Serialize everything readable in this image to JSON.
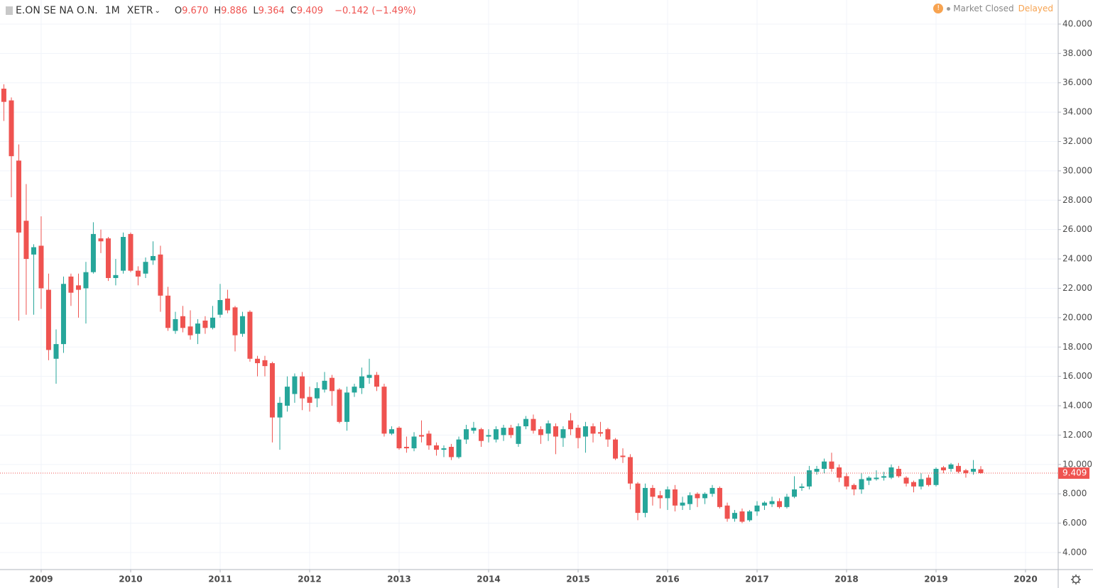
{
  "header": {
    "symbol": "E.ON SE NA O.N.",
    "interval": "1M",
    "exchange": "XETR",
    "ohlc": [
      {
        "key": "O",
        "value": "9.670"
      },
      {
        "key": "H",
        "value": "9.886"
      },
      {
        "key": "L",
        "value": "9.364"
      },
      {
        "key": "C",
        "value": "9.409"
      }
    ],
    "change": "−0.142 (−1.49%)",
    "status": "Market Closed",
    "feed": "Delayed"
  },
  "chart_data": {
    "type": "candlestick",
    "up_color": "#26a69a",
    "down_color": "#ef5350",
    "grid": true,
    "x": [
      2008.583,
      2008.667,
      2008.75,
      2008.833,
      2008.917,
      2009,
      2009.083,
      2009.167,
      2009.25,
      2009.333,
      2009.417,
      2009.5,
      2009.583,
      2009.667,
      2009.75,
      2009.833,
      2009.917,
      2010,
      2010.083,
      2010.167,
      2010.25,
      2010.333,
      2010.417,
      2010.5,
      2010.583,
      2010.667,
      2010.75,
      2010.833,
      2010.917,
      2011,
      2011.083,
      2011.167,
      2011.25,
      2011.333,
      2011.417,
      2011.5,
      2011.583,
      2011.667,
      2011.75,
      2011.833,
      2011.917,
      2012,
      2012.083,
      2012.167,
      2012.25,
      2012.333,
      2012.417,
      2012.5,
      2012.583,
      2012.667,
      2012.75,
      2012.833,
      2012.917,
      2013,
      2013.083,
      2013.167,
      2013.25,
      2013.333,
      2013.417,
      2013.5,
      2013.583,
      2013.667,
      2013.75,
      2013.833,
      2013.917,
      2014,
      2014.083,
      2014.167,
      2014.25,
      2014.333,
      2014.417,
      2014.5,
      2014.583,
      2014.667,
      2014.75,
      2014.833,
      2014.917,
      2015,
      2015.083,
      2015.167,
      2015.25,
      2015.333,
      2015.417,
      2015.5,
      2015.583,
      2015.667,
      2015.75,
      2015.833,
      2015.917,
      2016,
      2016.083,
      2016.167,
      2016.25,
      2016.333,
      2016.417,
      2016.5,
      2016.583,
      2016.667,
      2016.75,
      2016.833,
      2016.917,
      2017,
      2017.083,
      2017.167,
      2017.25,
      2017.333,
      2017.417,
      2017.5,
      2017.583,
      2017.667,
      2017.75,
      2017.833,
      2017.917,
      2018,
      2018.083,
      2018.167,
      2018.25,
      2018.333,
      2018.417,
      2018.5,
      2018.583,
      2018.667,
      2018.75,
      2018.833,
      2018.917,
      2019,
      2019.083,
      2019.167,
      2019.25,
      2019.333,
      2019.417,
      2019.5
    ],
    "open": [
      35.6,
      34.8,
      30.7,
      26.6,
      24.3,
      24.9,
      21.9,
      17.2,
      18.2,
      22.8,
      22.2,
      22.0,
      23.1,
      25.4,
      25.4,
      22.7,
      23.2,
      25.7,
      23.2,
      23.0,
      23.9,
      24.3,
      21.5,
      19.1,
      20.1,
      19.4,
      18.9,
      19.8,
      19.3,
      20.2,
      21.3,
      20.7,
      18.9,
      20.4,
      17.2,
      17.1,
      16.9,
      13.2,
      14.0,
      14.8,
      16.0,
      14.6,
      14.5,
      15.1,
      15.9,
      15.1,
      12.9,
      14.9,
      15.2,
      15.9,
      16.1,
      15.3,
      12.1,
      12.5,
      11.2,
      11.1,
      12.0,
      12.1,
      11.3,
      11.0,
      11.2,
      10.5,
      11.7,
      12.3,
      12.4,
      11.9,
      11.7,
      12.0,
      12.5,
      11.4,
      12.6,
      13.1,
      12.4,
      12.1,
      12.6,
      11.8,
      13.0,
      12.5,
      11.9,
      12.6,
      12.2,
      12.4,
      11.7,
      10.6,
      10.5,
      8.7,
      6.7,
      8.4,
      7.9,
      7.7,
      8.3,
      7.2,
      7.3,
      8.0,
      7.7,
      8.0,
      8.4,
      7.2,
      6.3,
      6.8,
      6.2,
      6.8,
      7.2,
      7.3,
      7.5,
      7.1,
      7.8,
      8.4,
      8.5,
      9.5,
      9.7,
      10.2,
      9.8,
      9.2,
      8.6,
      8.3,
      8.9,
      9.0,
      9.1,
      9.1,
      9.7,
      9.1,
      8.8,
      8.5,
      9.1,
      8.6,
      9.8,
      9.7,
      9.9,
      9.6,
      9.5,
      9.67
    ],
    "high": [
      35.9,
      35.0,
      31.8,
      29.1,
      25.0,
      26.9,
      23.0,
      19.2,
      22.8,
      23.0,
      23.0,
      23.8,
      26.5,
      26.0,
      25.5,
      24.0,
      25.8,
      25.8,
      23.5,
      24.1,
      25.2,
      24.9,
      22.1,
      20.4,
      20.8,
      20.5,
      19.9,
      20.1,
      20.8,
      22.3,
      21.9,
      20.8,
      20.4,
      20.5,
      17.4,
      17.4,
      17.0,
      14.6,
      16.0,
      16.2,
      16.3,
      15.3,
      15.6,
      16.3,
      16.1,
      15.2,
      15.3,
      15.5,
      16.6,
      17.2,
      16.3,
      15.5,
      12.6,
      12.6,
      11.9,
      12.2,
      13.0,
      12.3,
      11.5,
      11.3,
      11.4,
      11.9,
      12.7,
      12.9,
      12.5,
      12.4,
      12.6,
      12.7,
      12.7,
      12.8,
      13.3,
      13.4,
      12.6,
      13.0,
      12.8,
      12.6,
      13.5,
      12.7,
      12.9,
      12.8,
      12.9,
      12.5,
      11.8,
      11.1,
      10.7,
      8.8,
      8.7,
      8.6,
      8.2,
      8.5,
      8.6,
      7.8,
      8.1,
      8.1,
      8.1,
      8.6,
      8.5,
      7.4,
      6.9,
      7.0,
      6.9,
      7.5,
      7.5,
      7.8,
      7.7,
      8.0,
      9.2,
      8.7,
      9.9,
      9.9,
      10.4,
      10.8,
      10.0,
      9.4,
      8.7,
      9.4,
      9.2,
      9.6,
      9.5,
      10.0,
      9.9,
      9.2,
      8.9,
      9.4,
      9.3,
      9.8,
      9.9,
      10.1,
      10.1,
      9.7,
      10.3,
      9.886
    ],
    "low": [
      33.4,
      28.2,
      19.8,
      20.2,
      20.2,
      20.6,
      17.1,
      15.5,
      17.6,
      20.8,
      20.0,
      19.6,
      23.0,
      24.4,
      22.5,
      22.2,
      23.0,
      23.1,
      22.2,
      22.7,
      23.6,
      20.4,
      19.1,
      18.9,
      19.0,
      18.5,
      18.2,
      18.9,
      19.2,
      20.0,
      20.3,
      17.7,
      18.7,
      17.0,
      16.0,
      16.0,
      11.5,
      11.0,
      13.6,
      14.2,
      13.7,
      13.6,
      13.9,
      14.9,
      14.0,
      12.8,
      12.3,
      14.6,
      14.8,
      15.5,
      15.0,
      11.9,
      12.0,
      11.0,
      10.8,
      10.9,
      11.5,
      11.0,
      10.6,
      10.5,
      10.3,
      10.4,
      11.4,
      12.1,
      11.2,
      11.5,
      11.5,
      11.6,
      11.8,
      11.2,
      12.4,
      12.1,
      11.4,
      11.6,
      10.7,
      11.2,
      12.0,
      11.1,
      10.8,
      11.5,
      11.9,
      11.2,
      10.3,
      10.1,
      8.3,
      6.2,
      6.4,
      7.2,
      7.0,
      6.9,
      6.8,
      6.9,
      6.9,
      7.1,
      7.3,
      7.8,
      7.0,
      6.1,
      6.1,
      6.0,
      6.1,
      6.5,
      6.9,
      7.1,
      7.0,
      7.0,
      7.7,
      8.2,
      8.3,
      9.3,
      9.4,
      9.5,
      8.8,
      8.3,
      7.9,
      8.0,
      8.6,
      8.9,
      8.9,
      9.0,
      9.1,
      8.5,
      8.1,
      8.3,
      8.5,
      8.5,
      9.4,
      9.5,
      9.4,
      9.1,
      9.3,
      9.364
    ],
    "close": [
      34.7,
      31.0,
      25.8,
      24.0,
      24.8,
      22.0,
      17.8,
      18.2,
      22.3,
      21.7,
      21.9,
      23.1,
      25.7,
      25.2,
      22.7,
      22.9,
      25.5,
      23.2,
      22.8,
      23.8,
      24.2,
      21.5,
      19.3,
      19.9,
      19.3,
      18.8,
      19.6,
      19.3,
      20.0,
      21.2,
      20.5,
      18.8,
      20.1,
      17.2,
      16.9,
      16.7,
      13.2,
      14.2,
      15.3,
      16.0,
      14.5,
      14.2,
      15.2,
      15.7,
      15.0,
      12.9,
      14.9,
      15.3,
      16.0,
      16.1,
      15.3,
      12.1,
      12.4,
      11.1,
      11.1,
      11.9,
      11.9,
      11.3,
      11.0,
      11.1,
      10.5,
      11.7,
      12.4,
      12.5,
      11.6,
      12.0,
      12.4,
      12.5,
      12.0,
      12.6,
      13.1,
      12.3,
      12.0,
      12.8,
      11.9,
      12.4,
      12.4,
      11.8,
      12.6,
      12.1,
      12.1,
      11.7,
      10.4,
      10.5,
      8.7,
      6.7,
      8.4,
      7.8,
      7.7,
      8.3,
      7.2,
      7.4,
      7.9,
      7.7,
      8.0,
      8.4,
      7.1,
      6.3,
      6.7,
      6.1,
      6.8,
      7.2,
      7.4,
      7.5,
      7.1,
      7.8,
      8.3,
      8.5,
      9.6,
      9.7,
      10.2,
      9.7,
      9.1,
      8.5,
      8.3,
      9.0,
      9.1,
      9.1,
      9.2,
      9.8,
      9.2,
      8.7,
      8.5,
      9.0,
      8.6,
      9.7,
      9.6,
      10.0,
      9.5,
      9.4,
      9.7,
      9.409
    ],
    "last_price": 9.409,
    "xlim": [
      2008.54,
      2020.365
    ],
    "xticks": [
      2009,
      2010,
      2011,
      2012,
      2013,
      2014,
      2015,
      2016,
      2017,
      2018,
      2019,
      2020
    ],
    "ylim": [
      2.84,
      41.64
    ],
    "yticks": [
      {
        "value": 4,
        "label": "4.000"
      },
      {
        "value": 6,
        "label": "6.000"
      },
      {
        "value": 8,
        "label": "8.000"
      },
      {
        "value": 10,
        "label": "10.000"
      },
      {
        "value": 12,
        "label": "12.000"
      },
      {
        "value": 14,
        "label": "14.000"
      },
      {
        "value": 16,
        "label": "16.000"
      },
      {
        "value": 18,
        "label": "18.000"
      },
      {
        "value": 20,
        "label": "20.000"
      },
      {
        "value": 22,
        "label": "22.000"
      },
      {
        "value": 24,
        "label": "24.000"
      },
      {
        "value": 26,
        "label": "26.000"
      },
      {
        "value": 28,
        "label": "28.000"
      },
      {
        "value": 30,
        "label": "30.000"
      },
      {
        "value": 32,
        "label": "32.000"
      },
      {
        "value": 34,
        "label": "34.000"
      },
      {
        "value": 36,
        "label": "36.000"
      },
      {
        "value": 38,
        "label": "38.000"
      },
      {
        "value": 40,
        "label": "40.000"
      }
    ]
  }
}
